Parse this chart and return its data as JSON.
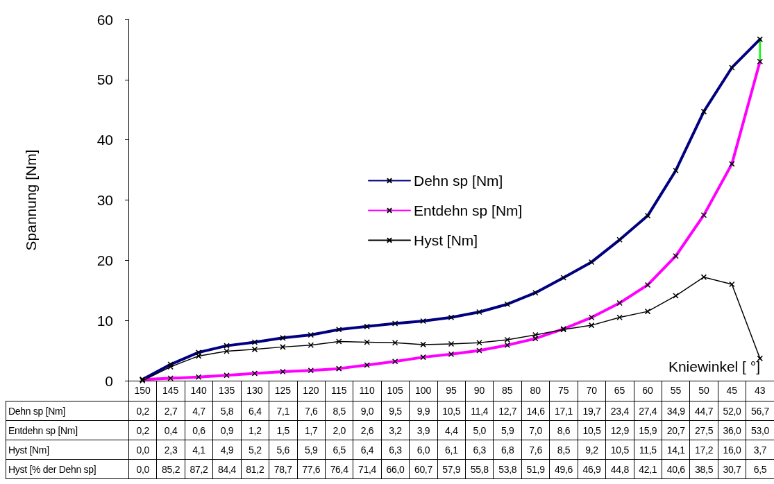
{
  "chart_data": {
    "type": "line",
    "xlabel": "Kniewinkel [ °]",
    "ylabel": "Spannung [Nm]",
    "categories": [
      "150",
      "145",
      "140",
      "135",
      "130",
      "125",
      "120",
      "115",
      "110",
      "105",
      "100",
      "95",
      "90",
      "85",
      "80",
      "75",
      "70",
      "65",
      "60",
      "55",
      "50",
      "45",
      "43"
    ],
    "series": [
      {
        "name": "Dehn sp [Nm]",
        "color": "#000080",
        "values": [
          0.2,
          2.7,
          4.7,
          5.8,
          6.4,
          7.1,
          7.6,
          8.5,
          9.0,
          9.5,
          9.9,
          10.5,
          11.4,
          12.7,
          14.6,
          17.1,
          19.7,
          23.4,
          27.4,
          34.9,
          44.7,
          52.0,
          56.7
        ],
        "value_labels": [
          "0,2",
          "2,7",
          "4,7",
          "5,8",
          "6,4",
          "7,1",
          "7,6",
          "8,5",
          "9,0",
          "9,5",
          "9,9",
          "10,5",
          "11,4",
          "12,7",
          "14,6",
          "17,1",
          "19,7",
          "23,4",
          "27,4",
          "34,9",
          "44,7",
          "52,0",
          "56,7"
        ]
      },
      {
        "name": "Entdehn sp [Nm]",
        "color": "#ff00ff",
        "values": [
          0.2,
          0.4,
          0.6,
          0.9,
          1.2,
          1.5,
          1.7,
          2.0,
          2.6,
          3.2,
          3.9,
          4.4,
          5.0,
          5.9,
          7.0,
          8.6,
          10.5,
          12.9,
          15.9,
          20.7,
          27.5,
          36.0,
          53.0
        ],
        "value_labels": [
          "0,2",
          "0,4",
          "0,6",
          "0,9",
          "1,2",
          "1,5",
          "1,7",
          "2,0",
          "2,6",
          "3,2",
          "3,9",
          "4,4",
          "5,0",
          "5,9",
          "7,0",
          "8,6",
          "10,5",
          "12,9",
          "15,9",
          "20,7",
          "27,5",
          "36,0",
          "53,0"
        ]
      },
      {
        "name": "Hyst [Nm]",
        "color": "#000000",
        "values": [
          0.0,
          2.3,
          4.1,
          4.9,
          5.2,
          5.6,
          5.9,
          6.5,
          6.4,
          6.3,
          6.0,
          6.1,
          6.3,
          6.8,
          7.6,
          8.5,
          9.2,
          10.5,
          11.5,
          14.1,
          17.2,
          16.0,
          3.7
        ],
        "value_labels": [
          "0,0",
          "2,3",
          "4,1",
          "4,9",
          "5,2",
          "5,6",
          "5,9",
          "6,5",
          "6,4",
          "6,3",
          "6,0",
          "6,1",
          "6,3",
          "6,8",
          "7,6",
          "8,5",
          "9,2",
          "10,5",
          "11,5",
          "14,1",
          "17,2",
          "16,0",
          "3,7"
        ]
      },
      {
        "color": "#00ff00",
        "x": [
          "43",
          "43"
        ],
        "values": [
          53.0,
          56.7
        ]
      }
    ],
    "annotations": [
      "Hyst [% der Dehn sp]",
      "0,0",
      "85,2",
      "87,2",
      "84,4",
      "81,2",
      "78,7",
      "77,6",
      "76,4",
      "71,4",
      "66,0",
      "60,7",
      "57,9",
      "55,8",
      "53,8",
      "51,9",
      "49,6",
      "46,9",
      "44,8",
      "42,1",
      "40,6",
      "38,5",
      "30,7",
      "6,5"
    ],
    "ylim": [
      0,
      60
    ],
    "yticks": [
      0,
      10,
      20,
      30,
      40,
      50,
      60
    ],
    "grid": false,
    "legend": "right",
    "marker": "cross",
    "line_style": "solid"
  }
}
